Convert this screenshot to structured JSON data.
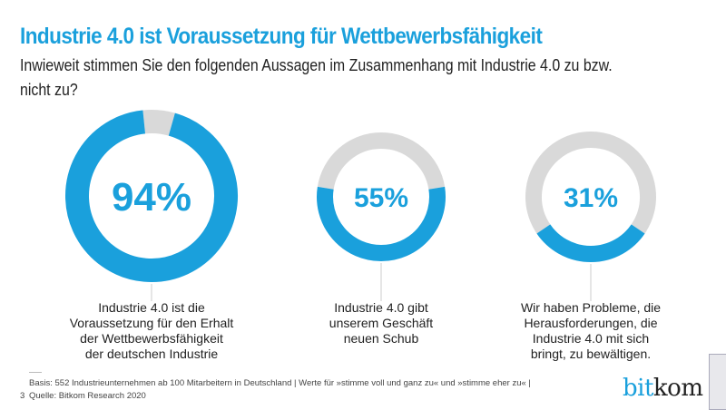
{
  "header": {
    "title": "Industrie 4.0 ist Voraussetzung für Wettbewerbsfähigkeit",
    "subtitle": "Inwieweit stimmen Sie den folgenden Aussagen im Zusammenhang mit Industrie 4.0 zu bzw. nicht zu?"
  },
  "colors": {
    "accent": "#1aa0dc",
    "remainder": "#d9d9d9"
  },
  "chart_data": {
    "type": "pie",
    "title": "Industrie 4.0 ist Voraussetzung für Wettbewerbsfähigkeit",
    "series": [
      {
        "value": 94,
        "display": "94%",
        "label": "Industrie 4.0 ist die Voraussetzung für den Erhalt der Wettbewerbsfähigkeit der deutschen Industrie",
        "label_lines": [
          "Industrie 4.0 ist die",
          "Voraussetzung für den Erhalt",
          "der Wettbewerbsfähigkeit",
          "der deutschen Industrie"
        ]
      },
      {
        "value": 55,
        "display": "55%",
        "label": "Industrie 4.0 gibt unserem Geschäft neuen Schub",
        "label_lines": [
          "Industrie 4.0 gibt",
          "unserem Geschäft",
          "neuen Schub"
        ]
      },
      {
        "value": 31,
        "display": "31%",
        "label": "Wir haben Probleme, die Herausforderungen, die Industrie 4.0 mit sich bringt, zu bewältigen.",
        "label_lines": [
          "Wir haben Probleme, die",
          "Herausforderungen, die",
          "Industrie 4.0 mit sich",
          "bringt, zu bewältigen."
        ]
      }
    ]
  },
  "footer": {
    "page": "3",
    "basis": "Basis: 552 Industrieunternehmen ab 100 Mitarbeitern in Deutschland | Werte für »stimme voll und ganz zu« und »stimme eher zu« |",
    "source": "Quelle: Bitkom Research 2020",
    "logo": "bitkom",
    "logo_a": "bit",
    "logo_b": "kom"
  }
}
